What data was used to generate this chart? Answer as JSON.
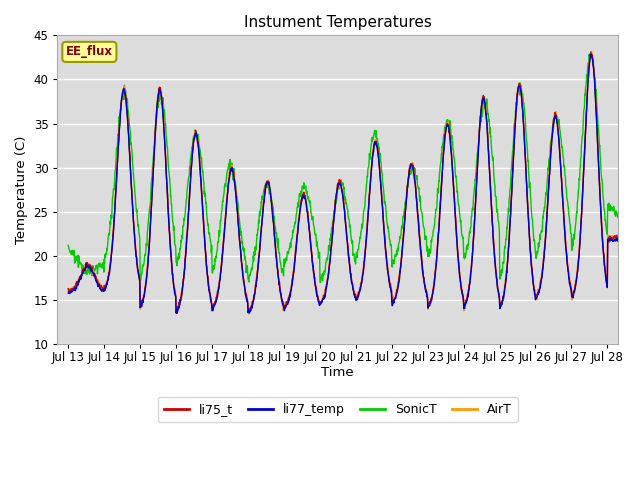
{
  "title": "Instument Temperatures",
  "xlabel": "Time",
  "ylabel": "Temperature (C)",
  "ylim": [
    10,
    45
  ],
  "xlim_start": 12.7,
  "xlim_end": 28.3,
  "x_tick_positions": [
    13,
    14,
    15,
    16,
    17,
    18,
    19,
    20,
    21,
    22,
    23,
    24,
    25,
    26,
    27,
    28
  ],
  "x_tick_labels": [
    "Jul 13",
    "Jul 14",
    "Jul 15",
    "Jul 16",
    "Jul 17",
    "Jul 18",
    "Jul 19",
    "Jul 20",
    "Jul 21",
    "Jul 22",
    "Jul 23",
    "Jul 24",
    "Jul 25",
    "Jul 26",
    "Jul 27",
    "Jul 28"
  ],
  "background_color": "#ffffff",
  "plot_bg_color": "#dcdcdc",
  "grid_color": "#ffffff",
  "annotation_text": "EE_flux",
  "annotation_bg": "#ffff99",
  "annotation_border": "#999900",
  "line_colors": {
    "li75_t": "#cc0000",
    "li77_temp": "#0000cc",
    "SonicT": "#00cc00",
    "AirT": "#ff9900"
  },
  "yticks": [
    10,
    15,
    20,
    25,
    30,
    35,
    40,
    45
  ],
  "legend_labels": [
    "li75_t",
    "li77_temp",
    "SonicT",
    "AirT"
  ],
  "day_peaks_base": [
    19,
    39,
    39,
    34,
    30,
    28.5,
    27,
    28.5,
    33,
    30.5,
    35,
    38,
    39.5,
    36,
    43,
    22
  ],
  "day_mins_base": [
    16,
    16,
    14,
    13.5,
    14,
    13.5,
    14,
    14.5,
    15,
    14.5,
    14,
    14,
    14,
    15,
    15,
    22
  ],
  "n_days": 16,
  "pts_per_day": 96
}
